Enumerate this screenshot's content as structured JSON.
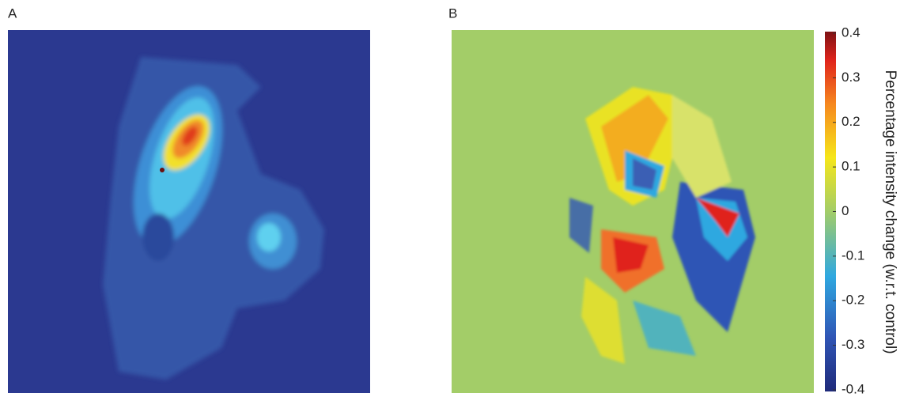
{
  "chart_data": [
    {
      "type": "image",
      "title": "A"
    },
    {
      "type": "image",
      "title": "B",
      "colorbar_label": "Percentage intensity change (w.r.t. control)",
      "colorbar_lim": [
        -0.4,
        0.4
      ],
      "colorbar_ticks": [
        0.4,
        0.3,
        0.2,
        0.1,
        0,
        -0.1,
        -0.2,
        -0.3,
        -0.4
      ]
    }
  ]
}
